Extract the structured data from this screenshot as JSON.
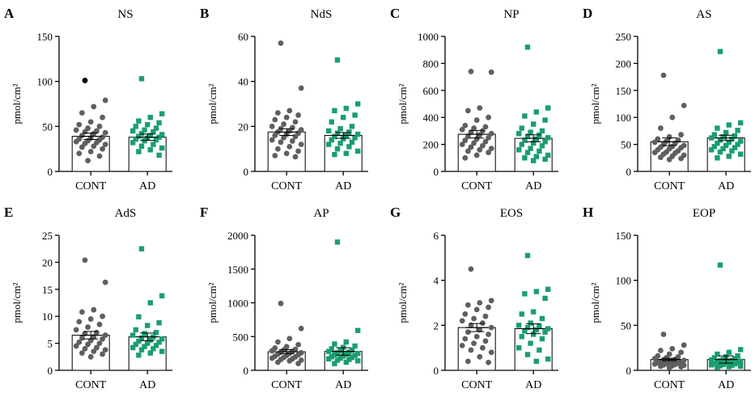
{
  "colors": {
    "cont": "#5f5f5f",
    "ad": "#1a9e6e",
    "outlier": "#000000",
    "axis": "#000000",
    "bar_fill": "#ffffff"
  },
  "chart_data": [
    {
      "panel_letter": "A",
      "type": "bar",
      "title": "NS",
      "ylabel": "pmol/cm²",
      "categories": [
        "CONT",
        "AD"
      ],
      "ylim": [
        0,
        150
      ],
      "yticks": [
        0,
        50,
        100,
        150
      ],
      "means": [
        39,
        38
      ],
      "errors": [
        3.5,
        3.5
      ],
      "points": [
        [
          101,
          79,
          72,
          65,
          60,
          55,
          52,
          50,
          48,
          46,
          45,
          44,
          43,
          42,
          40,
          38,
          37,
          36,
          35,
          34,
          33,
          32,
          31,
          30,
          28,
          27,
          25,
          22,
          20,
          17,
          12
        ],
        [
          103,
          64,
          60,
          56,
          54,
          52,
          50,
          48,
          46,
          45,
          44,
          42,
          41,
          40,
          39,
          38,
          37,
          36,
          35,
          34,
          32,
          30,
          28,
          26,
          24,
          22,
          18
        ]
      ],
      "outlier_indices": [
        [
          0
        ],
        []
      ]
    },
    {
      "panel_letter": "B",
      "type": "bar",
      "title": "NdS",
      "ylabel": "pmol/cm²",
      "categories": [
        "CONT",
        "AD"
      ],
      "ylim": [
        0,
        60
      ],
      "yticks": [
        0,
        20,
        40,
        60
      ],
      "means": [
        17.5,
        16
      ],
      "errors": [
        1.5,
        1.3
      ],
      "points": [
        [
          57,
          37,
          27,
          26,
          25,
          24,
          23,
          22,
          21,
          20,
          19.5,
          19,
          18.5,
          18,
          17.5,
          17,
          16.5,
          16,
          15.5,
          15,
          14,
          13.5,
          13,
          12,
          11,
          10,
          9,
          8,
          7,
          6.5
        ],
        [
          49.5,
          30,
          28,
          27,
          25,
          24,
          22,
          20,
          19,
          18,
          17.5,
          17,
          16.5,
          16,
          15.5,
          15,
          14.5,
          14,
          13,
          12.5,
          12,
          11,
          10,
          9,
          8,
          7.5
        ]
      ],
      "outlier_indices": [
        [],
        []
      ]
    },
    {
      "panel_letter": "C",
      "type": "bar",
      "title": "NP",
      "ylabel": "pmol/cm²",
      "categories": [
        "CONT",
        "AD"
      ],
      "ylim": [
        0,
        1000
      ],
      "yticks": [
        0,
        200,
        400,
        600,
        800,
        1000
      ],
      "means": [
        275,
        245
      ],
      "errors": [
        28,
        26
      ],
      "points": [
        [
          740,
          735,
          470,
          450,
          400,
          380,
          340,
          330,
          320,
          310,
          300,
          290,
          280,
          270,
          260,
          250,
          240,
          230,
          220,
          210,
          200,
          190,
          180,
          170,
          160,
          150,
          140,
          120,
          100
        ],
        [
          920,
          470,
          440,
          410,
          380,
          350,
          320,
          300,
          290,
          280,
          270,
          260,
          250,
          240,
          230,
          220,
          210,
          200,
          190,
          170,
          160,
          150,
          140,
          120,
          110,
          100,
          90,
          80
        ]
      ],
      "outlier_indices": [
        [],
        []
      ]
    },
    {
      "panel_letter": "D",
      "type": "bar",
      "title": "AS",
      "ylabel": "pmol/cm²",
      "categories": [
        "CONT",
        "AD"
      ],
      "ylim": [
        0,
        250
      ],
      "yticks": [
        0,
        50,
        100,
        150,
        200,
        250
      ],
      "means": [
        55,
        62
      ],
      "errors": [
        7,
        5
      ],
      "points": [
        [
          178,
          122,
          100,
          80,
          68,
          64,
          60,
          58,
          56,
          54,
          52,
          50,
          48,
          46,
          45,
          44,
          42,
          40,
          38,
          36,
          35,
          34,
          32,
          30,
          28,
          26,
          24,
          22
        ],
        [
          222,
          90,
          86,
          80,
          76,
          72,
          68,
          66,
          64,
          62,
          60,
          58,
          56,
          54,
          52,
          50,
          48,
          46,
          44,
          42,
          40,
          38,
          36,
          32,
          28,
          25
        ]
      ],
      "outlier_indices": [
        [],
        []
      ]
    },
    {
      "panel_letter": "E",
      "type": "bar",
      "title": "AdS",
      "ylabel": "pmol/cm²",
      "categories": [
        "CONT",
        "AD"
      ],
      "ylim": [
        0,
        25
      ],
      "yticks": [
        0,
        5,
        10,
        15,
        20,
        25
      ],
      "means": [
        6.5,
        6.2
      ],
      "errors": [
        0.7,
        0.7
      ],
      "points": [
        [
          20.4,
          16.3,
          11.2,
          10.8,
          10,
          9.5,
          9,
          8.5,
          8,
          7.5,
          7,
          6.8,
          6.5,
          6.2,
          6,
          5.8,
          5.5,
          5.2,
          5,
          4.8,
          4.5,
          4.2,
          4,
          3.8,
          3.5,
          3.2,
          3,
          2.5
        ],
        [
          22.5,
          13.8,
          12.5,
          9.9,
          8.8,
          8.3,
          7.5,
          7,
          6.8,
          6.5,
          6.2,
          6,
          5.8,
          5.6,
          5.4,
          5.2,
          5,
          4.8,
          4.6,
          4.4,
          4.2,
          4,
          3.8,
          3.5,
          3.2,
          2.8
        ]
      ],
      "outlier_indices": [
        [],
        []
      ]
    },
    {
      "panel_letter": "F",
      "type": "bar",
      "title": "AP",
      "ylabel": "pmol/cm²",
      "categories": [
        "CONT",
        "AD"
      ],
      "ylim": [
        0,
        2000
      ],
      "yticks": [
        0,
        500,
        1000,
        1500,
        2000
      ],
      "means": [
        275,
        280
      ],
      "errors": [
        30,
        55
      ],
      "points": [
        [
          990,
          620,
          470,
          420,
          380,
          350,
          330,
          310,
          300,
          290,
          280,
          270,
          260,
          250,
          240,
          230,
          220,
          210,
          200,
          190,
          180,
          170,
          160,
          150,
          140,
          120,
          100
        ],
        [
          1900,
          590,
          420,
          390,
          360,
          340,
          320,
          300,
          290,
          280,
          270,
          260,
          250,
          240,
          230,
          220,
          210,
          200,
          190,
          180,
          170,
          160,
          150,
          140,
          120,
          100
        ]
      ],
      "outlier_indices": [
        [],
        []
      ]
    },
    {
      "panel_letter": "G",
      "type": "bar",
      "title": "EOS",
      "ylabel": "pmol/cm²",
      "categories": [
        "CONT",
        "AD"
      ],
      "ylim": [
        0,
        6
      ],
      "yticks": [
        0,
        2,
        4,
        6
      ],
      "means": [
        1.9,
        1.85
      ],
      "errors": [
        0.18,
        0.22
      ],
      "points": [
        [
          4.5,
          3.1,
          3.0,
          2.9,
          2.8,
          2.7,
          2.5,
          2.4,
          2.3,
          2.2,
          2.1,
          2.0,
          1.9,
          1.8,
          1.7,
          1.6,
          1.5,
          1.4,
          1.3,
          1.2,
          1.1,
          1.0,
          0.9,
          0.8,
          0.6,
          0.4,
          0.35
        ],
        [
          5.1,
          3.6,
          3.5,
          3.4,
          3.2,
          2.6,
          2.5,
          2.3,
          2.1,
          2.0,
          1.95,
          1.9,
          1.85,
          1.8,
          1.75,
          1.7,
          1.6,
          1.5,
          1.4,
          1.2,
          1.0,
          0.9,
          0.7,
          0.5,
          0.4
        ]
      ],
      "outlier_indices": [
        [],
        []
      ]
    },
    {
      "panel_letter": "H",
      "type": "bar",
      "title": "EOP",
      "ylabel": "pmol/cm²",
      "categories": [
        "CONT",
        "AD"
      ],
      "ylim": [
        0,
        150
      ],
      "yticks": [
        0,
        50,
        100,
        150
      ],
      "means": [
        12,
        12
      ],
      "errors": [
        1.5,
        4
      ],
      "points": [
        [
          40,
          28,
          24,
          22,
          20,
          18,
          16,
          15,
          14,
          13,
          12,
          11.5,
          11,
          10.5,
          10,
          9.5,
          9,
          8.5,
          8,
          7.5,
          7,
          6.5,
          6,
          5.5,
          5,
          4.5,
          4,
          3
        ],
        [
          117,
          23,
          20,
          18,
          16,
          15,
          14,
          13,
          12,
          11.5,
          11,
          10.5,
          10,
          9.5,
          9,
          8.5,
          8,
          7.5,
          7,
          6.5,
          6,
          5.5,
          5,
          4.5,
          4,
          3.5
        ]
      ],
      "outlier_indices": [
        [],
        []
      ]
    }
  ]
}
